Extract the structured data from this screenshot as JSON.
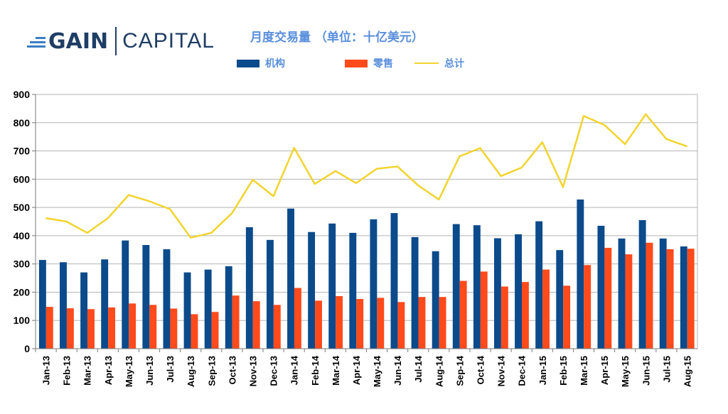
{
  "logo": {
    "left": "GAIN",
    "right": "CAPITAL"
  },
  "chart_data": {
    "type": "bar",
    "title": "月度交易量 （单位：十亿美元）",
    "xlabel": "",
    "ylabel": "",
    "ylim": [
      0,
      900
    ],
    "yticks": [
      0,
      100,
      200,
      300,
      400,
      500,
      600,
      700,
      800,
      900
    ],
    "grid": true,
    "legend_position": "top",
    "categories": [
      "Jan-13",
      "Feb-13",
      "Mar-13",
      "Apr-13",
      "May-13",
      "Jun-13",
      "Jul-13",
      "Aug-13",
      "Sep-13",
      "Oct-13",
      "Nov-13",
      "Dec-13",
      "Jan-14",
      "Feb-14",
      "Mar-14",
      "Apr-14",
      "May-14",
      "Jun-14",
      "Jul-14",
      "Aug-14",
      "Sep-14",
      "Oct-14",
      "Nov-14",
      "Dec-14",
      "Jan-15",
      "Feb-15",
      "Mar-15",
      "Apr-15",
      "May-15",
      "Jun-15",
      "Jul-15",
      "Aug-15"
    ],
    "series": [
      {
        "name": "机构",
        "kind": "bar",
        "color": "#0b4a8b",
        "values": [
          314,
          306,
          270,
          316,
          383,
          367,
          352,
          270,
          280,
          292,
          430,
          385,
          496,
          413,
          443,
          410,
          458,
          480,
          395,
          345,
          441,
          437,
          391,
          405,
          451,
          349,
          528,
          435,
          390,
          455,
          390,
          362
        ]
      },
      {
        "name": "零售",
        "kind": "bar",
        "color": "#ff4a1c",
        "values": [
          148,
          143,
          140,
          146,
          160,
          155,
          142,
          122,
          130,
          188,
          168,
          155,
          215,
          170,
          186,
          176,
          180,
          165,
          183,
          183,
          240,
          273,
          220,
          236,
          280,
          223,
          296,
          357,
          334,
          375,
          352,
          354
        ]
      },
      {
        "name": "总计",
        "kind": "line",
        "color": "#f2d42e",
        "values": [
          462,
          450,
          410,
          462,
          544,
          522,
          494,
          393,
          410,
          480,
          598,
          540,
          711,
          583,
          629,
          586,
          637,
          645,
          578,
          528,
          681,
          710,
          611,
          641,
          731,
          572,
          824,
          792,
          724,
          830,
          742,
          716
        ]
      }
    ]
  }
}
